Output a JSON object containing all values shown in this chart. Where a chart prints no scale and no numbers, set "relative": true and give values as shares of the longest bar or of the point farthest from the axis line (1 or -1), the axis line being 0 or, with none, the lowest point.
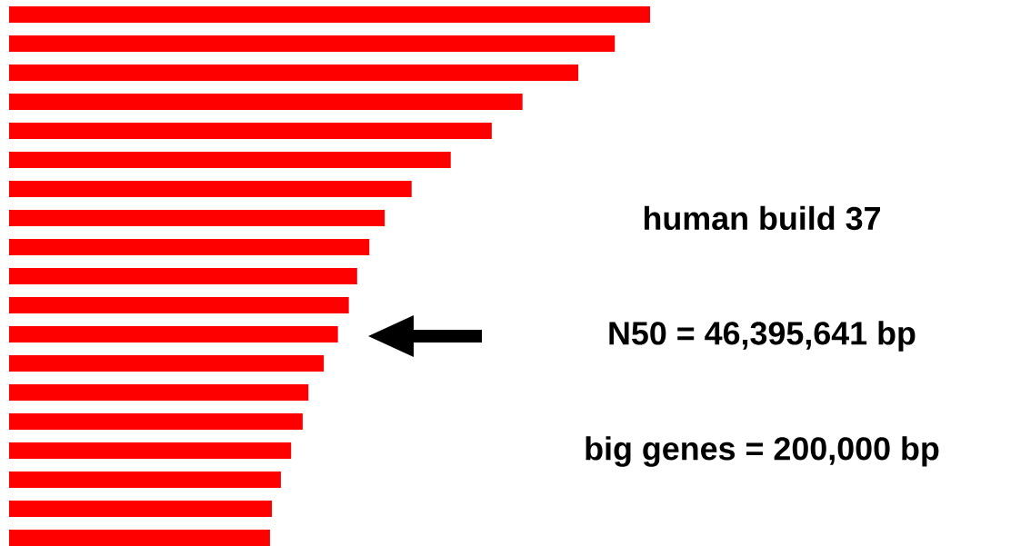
{
  "chart_data": {
    "type": "bar",
    "orientation": "horizontal",
    "relative": true,
    "color": "#ff0000",
    "categories": [
      null,
      null,
      null,
      null,
      null,
      null,
      null,
      null,
      null,
      null,
      null,
      null,
      null,
      null,
      null,
      null,
      null,
      null,
      null
    ],
    "values": [
      1,
      0.945,
      0.888,
      0.801,
      0.753,
      0.689,
      0.628,
      0.586,
      0.562,
      0.543,
      0.53,
      0.513,
      0.491,
      0.467,
      0.458,
      0.44,
      0.424,
      0.41,
      0.407
    ],
    "annotations": [
      "human build 37",
      "N50 = 46,395,641 bp",
      "big genes = 200,000 bp"
    ]
  }
}
